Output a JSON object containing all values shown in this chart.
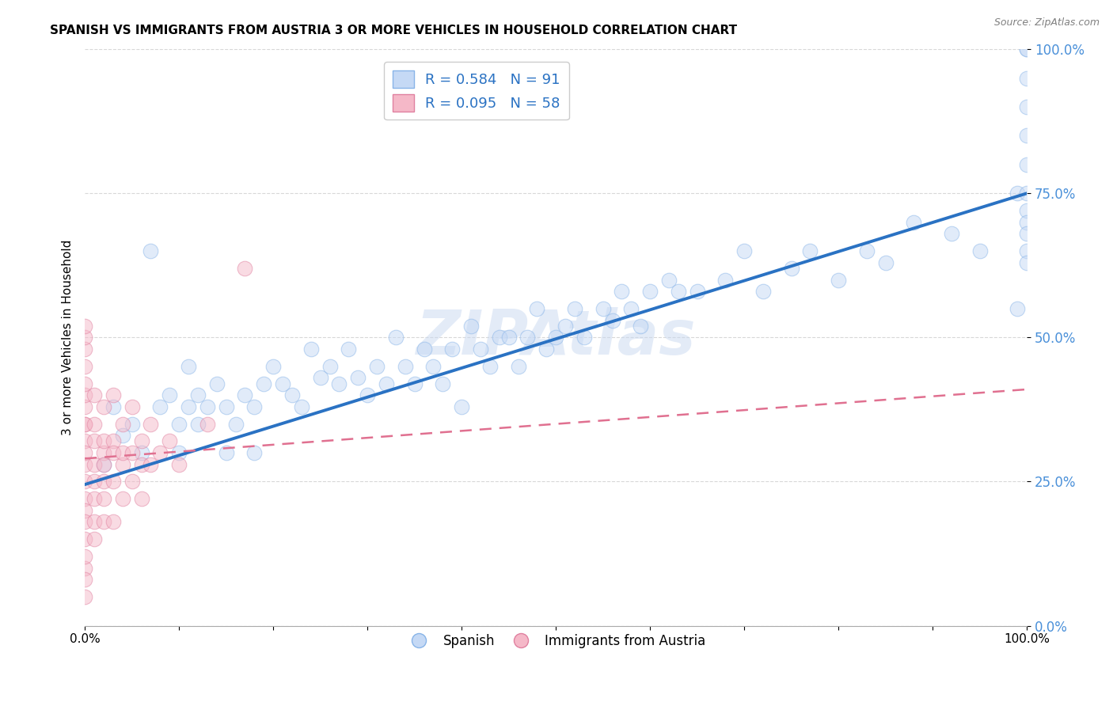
{
  "title": "SPANISH VS IMMIGRANTS FROM AUSTRIA 3 OR MORE VEHICLES IN HOUSEHOLD CORRELATION CHART",
  "source": "Source: ZipAtlas.com",
  "ylabel": "3 or more Vehicles in Household",
  "xlim": [
    0.0,
    1.0
  ],
  "ylim": [
    0.0,
    1.0
  ],
  "xtick_positions": [
    0.0,
    0.1,
    0.2,
    0.3,
    0.4,
    0.5,
    0.6,
    0.7,
    0.8,
    0.9,
    1.0
  ],
  "xtick_labels": [
    "0.0%",
    "",
    "",
    "",
    "",
    "",
    "",
    "",
    "",
    "",
    "100.0%"
  ],
  "ytick_values": [
    0.0,
    0.25,
    0.5,
    0.75,
    1.0
  ],
  "ytick_labels": [
    "0.0%",
    "25.0%",
    "50.0%",
    "75.0%",
    "100.0%"
  ],
  "watermark": "ZIPAtlas",
  "legend_entries": [
    {
      "label": "R = 0.584   N = 91",
      "color": "#aec6f0"
    },
    {
      "label": "R = 0.095   N = 58",
      "color": "#f4a7b9"
    }
  ],
  "legend_labels": [
    "Spanish",
    "Immigrants from Austria"
  ],
  "blue_line_intercept": 0.245,
  "blue_line_slope": 0.505,
  "pink_line_intercept": 0.29,
  "pink_line_slope": 0.12,
  "blue_scatter_x": [
    0.02,
    0.03,
    0.04,
    0.05,
    0.06,
    0.07,
    0.08,
    0.09,
    0.1,
    0.1,
    0.11,
    0.11,
    0.12,
    0.12,
    0.13,
    0.14,
    0.15,
    0.15,
    0.16,
    0.17,
    0.18,
    0.18,
    0.19,
    0.2,
    0.21,
    0.22,
    0.23,
    0.24,
    0.25,
    0.26,
    0.27,
    0.28,
    0.29,
    0.3,
    0.31,
    0.32,
    0.33,
    0.34,
    0.35,
    0.36,
    0.37,
    0.38,
    0.39,
    0.4,
    0.41,
    0.42,
    0.43,
    0.44,
    0.45,
    0.46,
    0.47,
    0.48,
    0.49,
    0.5,
    0.51,
    0.52,
    0.53,
    0.55,
    0.56,
    0.57,
    0.58,
    0.59,
    0.6,
    0.62,
    0.63,
    0.65,
    0.68,
    0.7,
    0.72,
    0.75,
    0.77,
    0.8,
    0.83,
    0.85,
    0.88,
    0.92,
    0.95,
    0.99,
    0.99,
    1.0,
    1.0,
    1.0,
    1.0,
    1.0,
    1.0,
    1.0,
    1.0,
    1.0,
    1.0,
    1.0,
    1.0
  ],
  "blue_scatter_y": [
    0.28,
    0.38,
    0.33,
    0.35,
    0.3,
    0.65,
    0.38,
    0.4,
    0.35,
    0.3,
    0.38,
    0.45,
    0.4,
    0.35,
    0.38,
    0.42,
    0.38,
    0.3,
    0.35,
    0.4,
    0.38,
    0.3,
    0.42,
    0.45,
    0.42,
    0.4,
    0.38,
    0.48,
    0.43,
    0.45,
    0.42,
    0.48,
    0.43,
    0.4,
    0.45,
    0.42,
    0.5,
    0.45,
    0.42,
    0.48,
    0.45,
    0.42,
    0.48,
    0.38,
    0.52,
    0.48,
    0.45,
    0.5,
    0.5,
    0.45,
    0.5,
    0.55,
    0.48,
    0.5,
    0.52,
    0.55,
    0.5,
    0.55,
    0.53,
    0.58,
    0.55,
    0.52,
    0.58,
    0.6,
    0.58,
    0.58,
    0.6,
    0.65,
    0.58,
    0.62,
    0.65,
    0.6,
    0.65,
    0.63,
    0.7,
    0.68,
    0.65,
    0.55,
    0.75,
    1.0,
    1.0,
    0.95,
    0.9,
    0.85,
    0.8,
    0.75,
    0.72,
    0.7,
    0.68,
    0.65,
    0.63
  ],
  "pink_scatter_x": [
    0.0,
    0.0,
    0.0,
    0.0,
    0.0,
    0.0,
    0.0,
    0.0,
    0.0,
    0.0,
    0.0,
    0.0,
    0.0,
    0.0,
    0.0,
    0.0,
    0.0,
    0.0,
    0.0,
    0.0,
    0.0,
    0.01,
    0.01,
    0.01,
    0.01,
    0.01,
    0.01,
    0.01,
    0.01,
    0.02,
    0.02,
    0.02,
    0.02,
    0.02,
    0.02,
    0.02,
    0.03,
    0.03,
    0.03,
    0.03,
    0.03,
    0.04,
    0.04,
    0.04,
    0.04,
    0.05,
    0.05,
    0.05,
    0.06,
    0.06,
    0.06,
    0.07,
    0.07,
    0.08,
    0.09,
    0.1,
    0.13,
    0.17
  ],
  "pink_scatter_y": [
    0.28,
    0.32,
    0.22,
    0.2,
    0.25,
    0.35,
    0.38,
    0.15,
    0.1,
    0.08,
    0.4,
    0.12,
    0.45,
    0.05,
    0.18,
    0.3,
    0.35,
    0.42,
    0.48,
    0.5,
    0.52,
    0.28,
    0.32,
    0.25,
    0.18,
    0.15,
    0.4,
    0.35,
    0.22,
    0.3,
    0.38,
    0.25,
    0.18,
    0.32,
    0.28,
    0.22,
    0.32,
    0.4,
    0.25,
    0.18,
    0.3,
    0.35,
    0.28,
    0.22,
    0.3,
    0.3,
    0.38,
    0.25,
    0.32,
    0.28,
    0.22,
    0.35,
    0.28,
    0.3,
    0.32,
    0.28,
    0.35,
    0.62
  ],
  "background_color": "#ffffff",
  "grid_color": "#d8d8d8",
  "title_fontsize": 11,
  "axis_label_fontsize": 11,
  "tick_fontsize": 11,
  "dot_size": 180,
  "dot_alpha": 0.5
}
